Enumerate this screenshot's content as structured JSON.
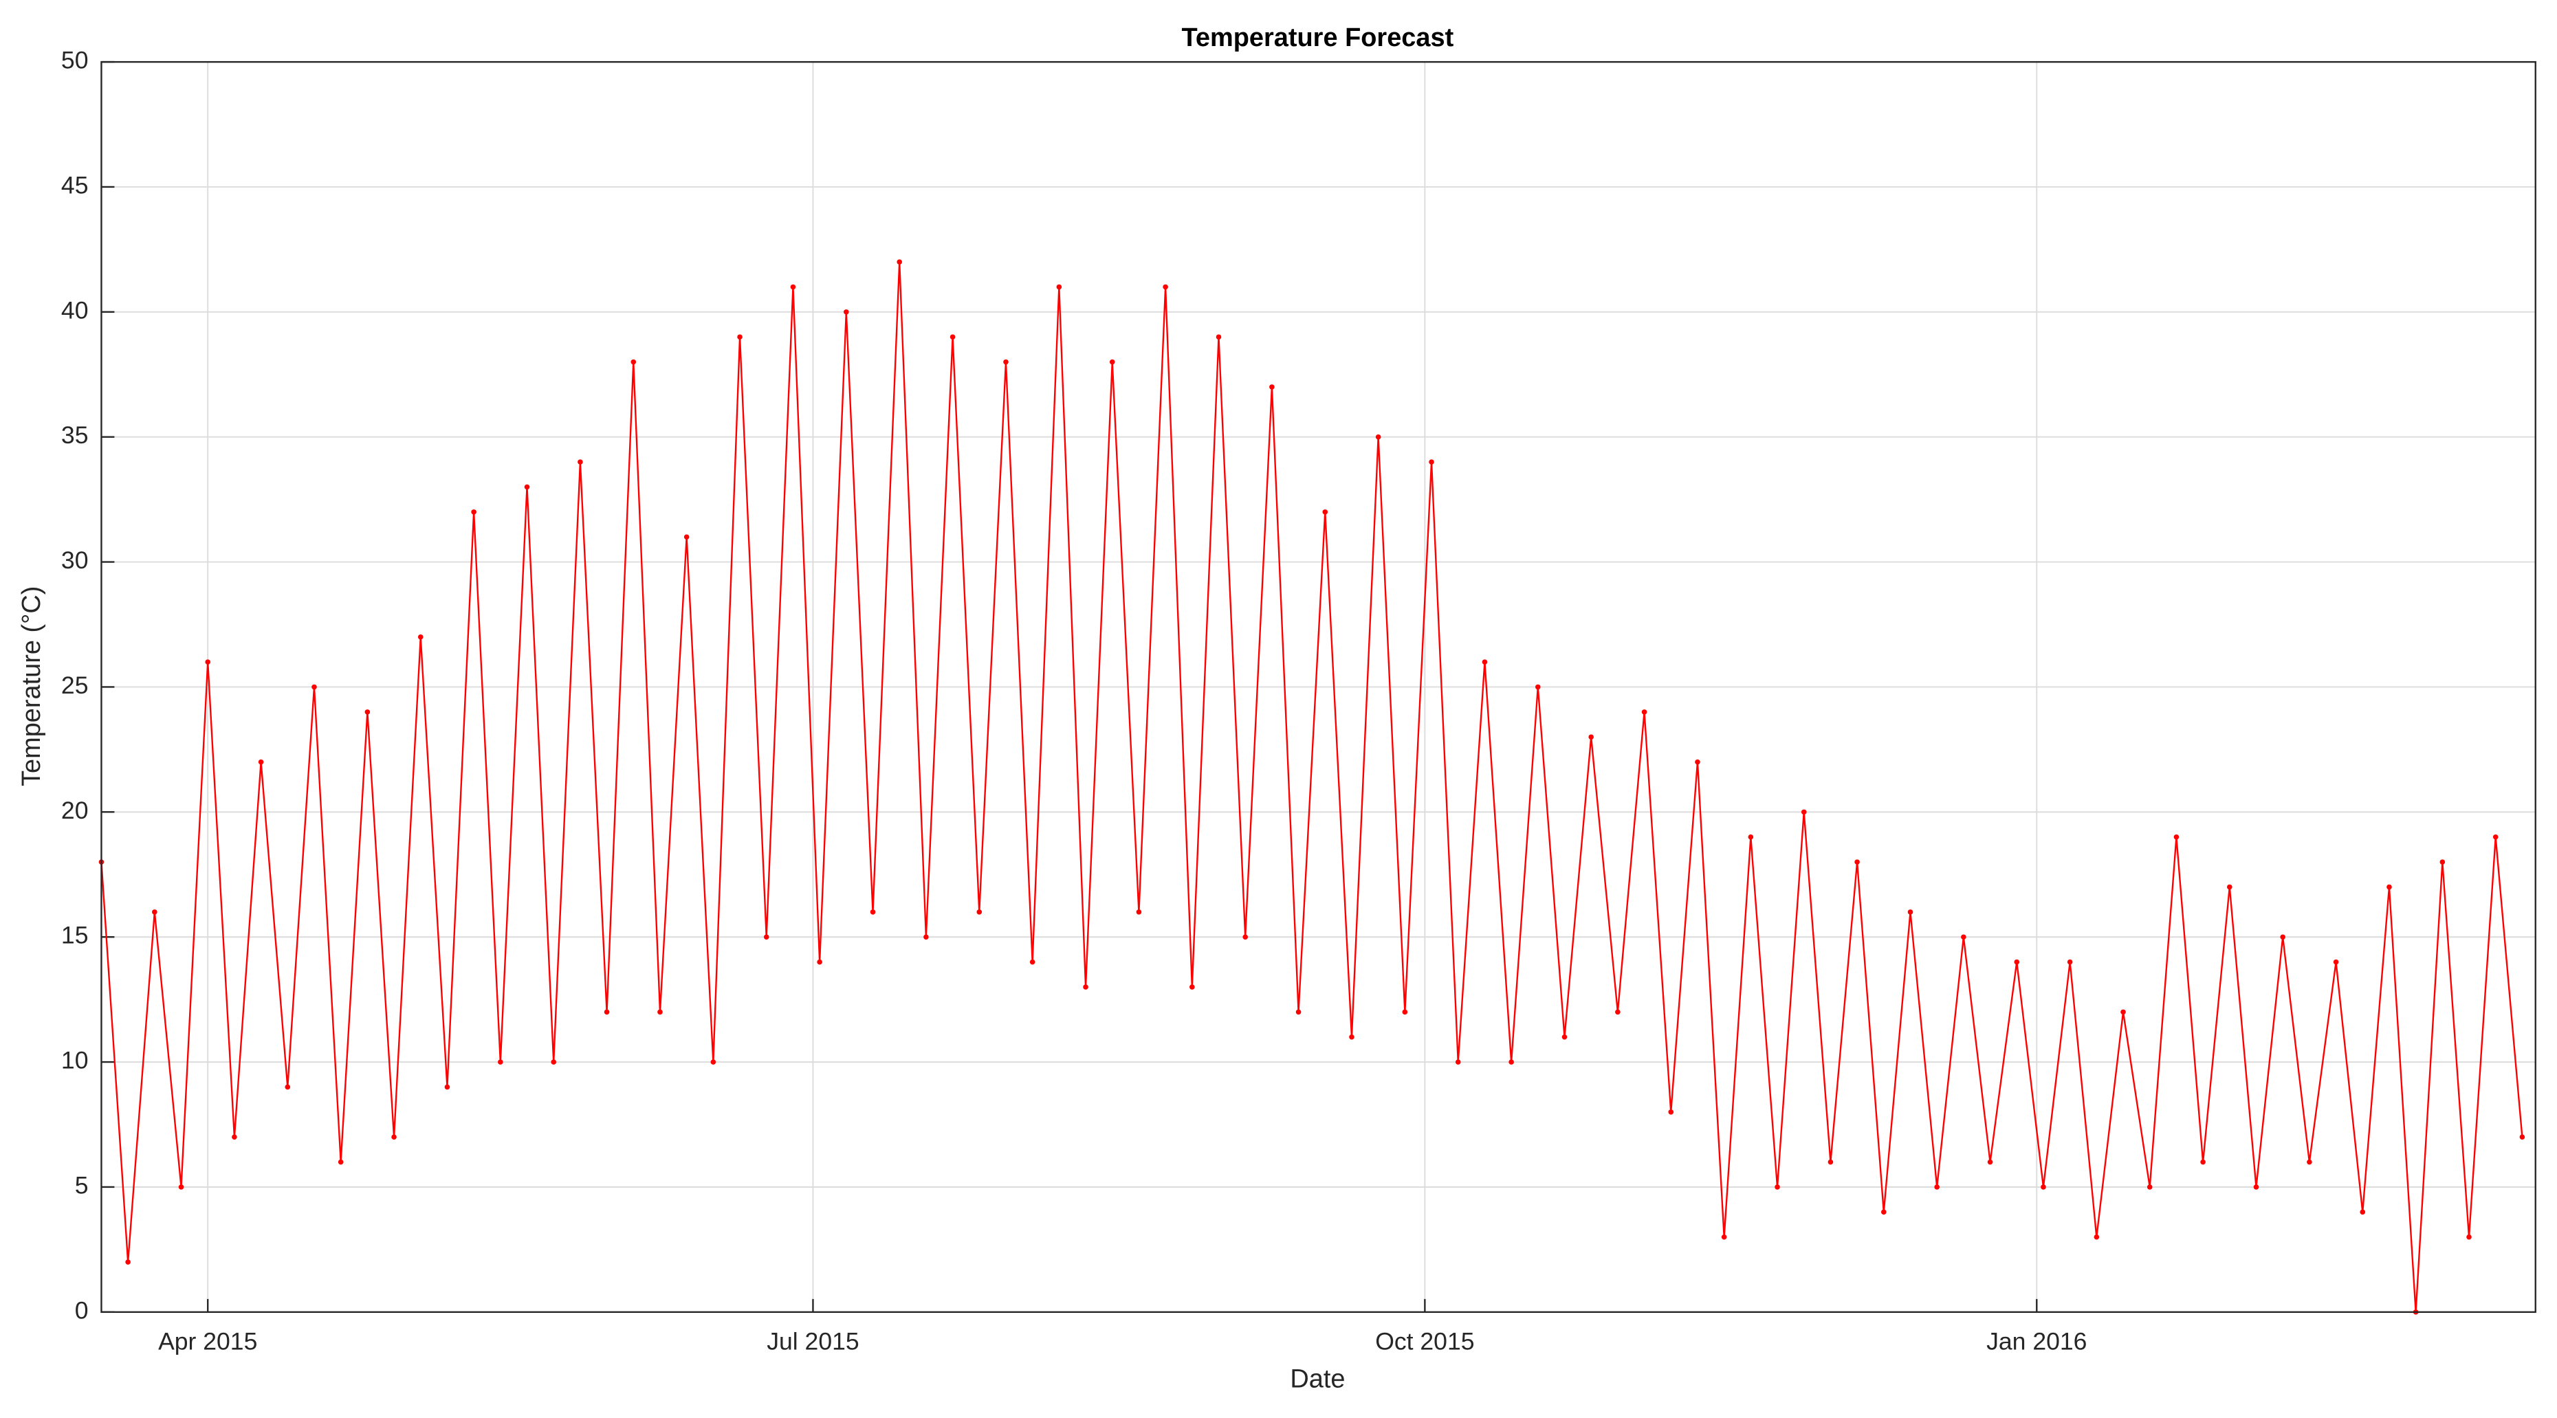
{
  "chart_data": {
    "type": "line",
    "title": "Temperature Forecast",
    "xlabel": "Date",
    "ylabel": "Temperature (°C)",
    "x": [
      "2015-03-16",
      "2015-03-20",
      "2015-03-24",
      "2015-03-28",
      "2015-04-01",
      "2015-04-05",
      "2015-04-09",
      "2015-04-13",
      "2015-04-17",
      "2015-04-21",
      "2015-04-25",
      "2015-04-29",
      "2015-05-03",
      "2015-05-07",
      "2015-05-11",
      "2015-05-15",
      "2015-05-19",
      "2015-05-23",
      "2015-05-27",
      "2015-05-31",
      "2015-06-04",
      "2015-06-08",
      "2015-06-12",
      "2015-06-16",
      "2015-06-20",
      "2015-06-24",
      "2015-06-28",
      "2015-07-02",
      "2015-07-06",
      "2015-07-10",
      "2015-07-14",
      "2015-07-18",
      "2015-07-22",
      "2015-07-26",
      "2015-07-30",
      "2015-08-03",
      "2015-08-07",
      "2015-08-11",
      "2015-08-15",
      "2015-08-19",
      "2015-08-23",
      "2015-08-27",
      "2015-08-31",
      "2015-09-04",
      "2015-09-08",
      "2015-09-12",
      "2015-09-16",
      "2015-09-20",
      "2015-09-24",
      "2015-09-28",
      "2015-10-02",
      "2015-10-06",
      "2015-10-10",
      "2015-10-14",
      "2015-10-18",
      "2015-10-22",
      "2015-10-26",
      "2015-10-30",
      "2015-11-03",
      "2015-11-07",
      "2015-11-11",
      "2015-11-15",
      "2015-11-19",
      "2015-11-23",
      "2015-11-27",
      "2015-12-01",
      "2015-12-05",
      "2015-12-09",
      "2015-12-13",
      "2015-12-17",
      "2015-12-21",
      "2015-12-25",
      "2015-12-29",
      "2016-01-02",
      "2016-01-06",
      "2016-01-10",
      "2016-01-14",
      "2016-01-18",
      "2016-01-22",
      "2016-01-26",
      "2016-01-30",
      "2016-02-03",
      "2016-02-07",
      "2016-02-11",
      "2016-02-15",
      "2016-02-19",
      "2016-02-23",
      "2016-02-27",
      "2016-03-02",
      "2016-03-06",
      "2016-03-10",
      "2016-03-14"
    ],
    "series": [
      {
        "name": "Temperature",
        "color": "#ff0000",
        "values": [
          18,
          2,
          16,
          5,
          26,
          7,
          22,
          9,
          25,
          6,
          24,
          7,
          27,
          9,
          32,
          10,
          33,
          10,
          34,
          12,
          38,
          12,
          31,
          10,
          39,
          15,
          41,
          14,
          40,
          16,
          42,
          15,
          39,
          16,
          38,
          14,
          41,
          13,
          38,
          16,
          41,
          13,
          39,
          15,
          37,
          12,
          32,
          11,
          35,
          12,
          34,
          10,
          26,
          10,
          25,
          11,
          23,
          12,
          24,
          8,
          22,
          3,
          19,
          5,
          20,
          6,
          18,
          4,
          16,
          5,
          15,
          6,
          14,
          5,
          14,
          3,
          12,
          5,
          19,
          6,
          17,
          5,
          15,
          6,
          14,
          4,
          17,
          0,
          18,
          3,
          19,
          7
        ]
      }
    ],
    "xlim": [
      "2015-03-16",
      "2016-03-16"
    ],
    "xticks": [
      {
        "value": "2015-04-01",
        "label": "Apr 2015"
      },
      {
        "value": "2015-07-01",
        "label": "Jul 2015"
      },
      {
        "value": "2015-10-01",
        "label": "Oct 2015"
      },
      {
        "value": "2016-01-01",
        "label": "Jan 2016"
      }
    ],
    "ylim": [
      0,
      50
    ],
    "yticks": [
      0,
      5,
      10,
      15,
      20,
      25,
      30,
      35,
      40,
      45,
      50
    ],
    "grid": true
  }
}
